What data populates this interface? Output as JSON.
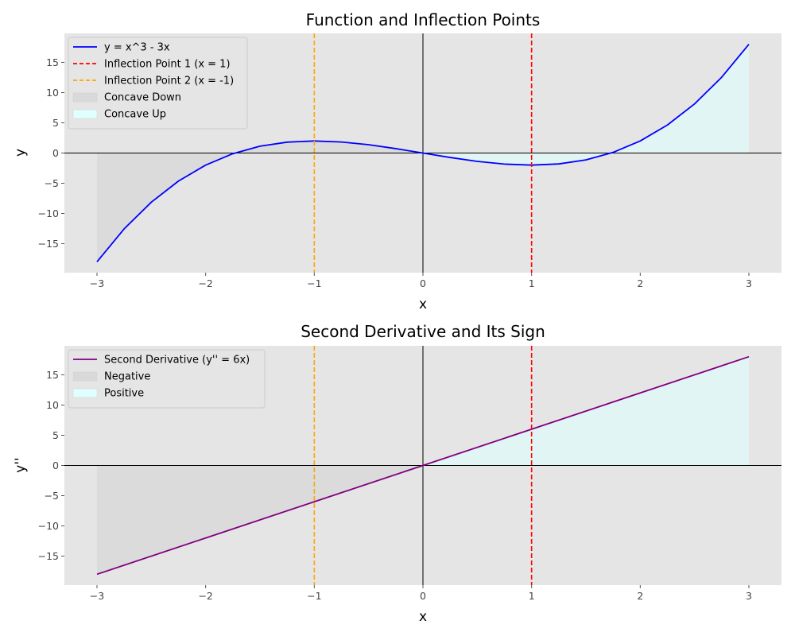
{
  "chart_data": [
    {
      "type": "line",
      "title": "Function and Inflection Points",
      "xlabel": "x",
      "ylabel": "y",
      "xlim": [
        -3.3,
        3.3
      ],
      "ylim": [
        -19.8,
        19.8
      ],
      "xticks": [
        -3,
        -2,
        -1,
        0,
        1,
        2,
        3
      ],
      "xtick_labels": [
        "−3",
        "−2",
        "−1",
        "0",
        "1",
        "2",
        "3"
      ],
      "yticks": [
        -15,
        -10,
        -5,
        0,
        5,
        10,
        15
      ],
      "ytick_labels": [
        "−15",
        "−10",
        "−5",
        "0",
        "5",
        "10",
        "15"
      ],
      "grid": false,
      "legend_position": "top-left",
      "series": [
        {
          "name": "y = x^3 - 3x",
          "color": "#0000ff",
          "x": [
            -3.0,
            -2.75,
            -2.5,
            -2.25,
            -2.0,
            -1.75,
            -1.5,
            -1.25,
            -1.0,
            -0.75,
            -0.5,
            -0.25,
            0.0,
            0.25,
            0.5,
            0.75,
            1.0,
            1.25,
            1.5,
            1.75,
            2.0,
            2.25,
            2.5,
            2.75,
            3.0
          ],
          "y": [
            -18.0,
            -12.55,
            -8.13,
            -4.64,
            -2.0,
            -0.11,
            1.13,
            1.8,
            2.0,
            1.83,
            1.38,
            0.73,
            0.0,
            -0.73,
            -1.38,
            -1.83,
            -2.0,
            -1.8,
            -1.13,
            0.11,
            2.0,
            4.64,
            8.13,
            12.55,
            18.0
          ]
        }
      ],
      "vlines": [
        {
          "name": "Inflection Point 1 (x = 1)",
          "x": 1,
          "color": "#ff0000"
        },
        {
          "name": "Inflection Point 2 (x = -1)",
          "x": -1,
          "color": "#ffa500"
        }
      ],
      "fills": [
        {
          "name": "Concave Down",
          "region": "x < 0",
          "color": "#d9d9d9"
        },
        {
          "name": "Concave Up",
          "region": "x > 0",
          "color": "#e0ffff"
        }
      ]
    },
    {
      "type": "line",
      "title": "Second Derivative and Its Sign",
      "xlabel": "x",
      "ylabel": "y''",
      "xlim": [
        -3.3,
        3.3
      ],
      "ylim": [
        -19.8,
        19.8
      ],
      "xticks": [
        -3,
        -2,
        -1,
        0,
        1,
        2,
        3
      ],
      "xtick_labels": [
        "−3",
        "−2",
        "−1",
        "0",
        "1",
        "2",
        "3"
      ],
      "yticks": [
        -15,
        -10,
        -5,
        0,
        5,
        10,
        15
      ],
      "ytick_labels": [
        "−15",
        "−10",
        "−5",
        "0",
        "5",
        "10",
        "15"
      ],
      "grid": false,
      "legend_position": "top-left",
      "series": [
        {
          "name": "Second Derivative (y'' = 6x)",
          "color": "#800080",
          "x": [
            -3,
            -2,
            -1,
            0,
            1,
            2,
            3
          ],
          "y": [
            -18,
            -12,
            -6,
            0,
            6,
            12,
            18
          ]
        }
      ],
      "vlines": [
        {
          "x": 1,
          "color": "#ff0000"
        },
        {
          "x": -1,
          "color": "#ffa500"
        }
      ],
      "fills": [
        {
          "name": "Negative",
          "region": "y'' < 0",
          "color": "#d9d9d9"
        },
        {
          "name": "Positive",
          "region": "y'' > 0",
          "color": "#e0ffff"
        }
      ]
    }
  ]
}
